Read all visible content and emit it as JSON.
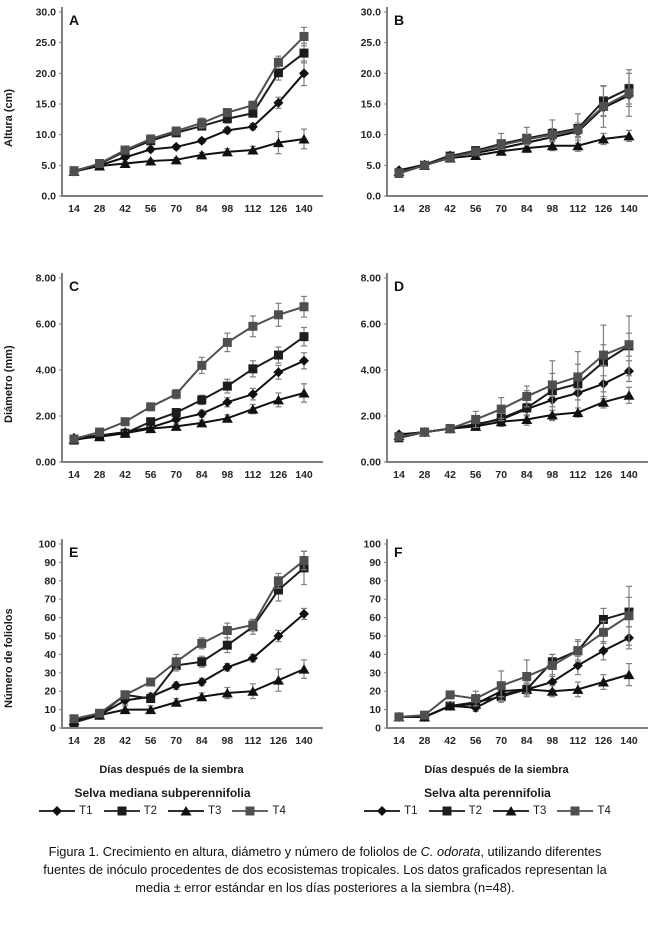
{
  "colors": {
    "axis": "#808080",
    "error_bar": "#7f7f7f",
    "text": "#1a1a1a",
    "t1": "#111111",
    "t2": "#1c1c1c",
    "t3": "#111111",
    "t4": "#4f4f4f"
  },
  "legends": [
    {
      "title": "Selva mediana subperennifolia",
      "entries": [
        {
          "label": "T1",
          "marker": "diamond",
          "color": "#111111"
        },
        {
          "label": "T2",
          "marker": "square",
          "color": "#1c1c1c"
        },
        {
          "label": "T3",
          "marker": "triangle",
          "color": "#111111"
        },
        {
          "label": "T4",
          "marker": "square",
          "color": "#4f4f4f"
        }
      ]
    },
    {
      "title": "Selva alta perennifolia",
      "entries": [
        {
          "label": "T1",
          "marker": "diamond",
          "color": "#111111"
        },
        {
          "label": "T2",
          "marker": "square",
          "color": "#1c1c1c"
        },
        {
          "label": "T3",
          "marker": "triangle",
          "color": "#111111"
        },
        {
          "label": "T4",
          "marker": "square",
          "color": "#4f4f4f"
        }
      ]
    }
  ],
  "caption": {
    "prefix": "Figura 1. Crecimiento en altura, diámetro y número de foliolos de ",
    "italic": "C. odorata",
    "suffix": ", utilizando diferentes fuentes de inóculo procedentes de dos ecosistemas tropicales. Los datos graficados representan la media ± error estándar en los días posteriores a la siembra (n=48)."
  },
  "chart_data": [
    {
      "panel_label": "A",
      "type": "line",
      "ylabel": "Altura (cm)",
      "ylim": [
        0,
        30
      ],
      "ytick_values": [
        30,
        25,
        20,
        15,
        10,
        5,
        0
      ],
      "ytick_labels": [
        "30.0",
        "25.0",
        "20.0",
        "15.0",
        "10.0",
        "5.0",
        "0.0"
      ],
      "x": [
        14,
        28,
        42,
        56,
        70,
        84,
        98,
        112,
        126,
        140
      ],
      "series": [
        {
          "name": "T1",
          "marker": "diamond",
          "color": "#111111",
          "values": [
            4.0,
            5.0,
            6.3,
            7.6,
            8.0,
            9.0,
            10.7,
            11.3,
            15.2,
            20.0
          ],
          "errors": [
            0.3,
            0.3,
            0.3,
            0.4,
            0.4,
            0.4,
            0.5,
            0.5,
            0.9,
            2.0
          ]
        },
        {
          "name": "T2",
          "marker": "square",
          "color": "#1c1c1c",
          "values": [
            4.1,
            5.2,
            7.3,
            9.0,
            10.3,
            11.4,
            12.6,
            13.5,
            20.1,
            23.3
          ],
          "errors": [
            0.3,
            0.3,
            0.4,
            0.4,
            0.5,
            0.6,
            0.7,
            0.6,
            1.2,
            1.6
          ]
        },
        {
          "name": "T3",
          "marker": "triangle",
          "color": "#111111",
          "values": [
            4.0,
            4.9,
            5.3,
            5.7,
            5.9,
            6.7,
            7.2,
            7.5,
            8.7,
            9.3
          ],
          "errors": [
            0.3,
            0.3,
            0.3,
            0.3,
            0.3,
            0.4,
            0.5,
            0.6,
            1.8,
            1.6
          ]
        },
        {
          "name": "T4",
          "marker": "square",
          "color": "#4f4f4f",
          "values": [
            4.0,
            5.3,
            7.5,
            9.3,
            10.6,
            11.9,
            13.6,
            14.8,
            21.8,
            26.0
          ],
          "errors": [
            0.4,
            0.3,
            0.4,
            0.4,
            0.5,
            0.8,
            0.6,
            0.6,
            1.0,
            1.5
          ]
        }
      ]
    },
    {
      "panel_label": "B",
      "type": "line",
      "ylabel": "",
      "ylim": [
        0,
        30
      ],
      "ytick_values": [
        30,
        25,
        20,
        15,
        10,
        5,
        0
      ],
      "ytick_labels": [
        "30.0",
        "25.0",
        "20.0",
        "15.0",
        "10.0",
        "5.0",
        "0.0"
      ],
      "x": [
        14,
        28,
        42,
        56,
        70,
        84,
        98,
        112,
        126,
        140
      ],
      "series": [
        {
          "name": "T1",
          "marker": "diamond",
          "color": "#111111",
          "values": [
            4.2,
            5.1,
            6.6,
            7.0,
            7.8,
            8.7,
            9.6,
            10.5,
            14.4,
            16.4
          ],
          "errors": [
            0.3,
            0.3,
            0.4,
            0.5,
            0.6,
            0.7,
            0.8,
            1.0,
            1.4,
            1.8
          ]
        },
        {
          "name": "T2",
          "marker": "square",
          "color": "#1c1c1c",
          "values": [
            3.7,
            5.0,
            6.5,
            7.4,
            8.5,
            9.4,
            10.2,
            11.0,
            15.5,
            17.5
          ],
          "errors": [
            0.3,
            0.3,
            0.4,
            0.6,
            1.7,
            1.8,
            2.2,
            2.4,
            2.4,
            2.5
          ]
        },
        {
          "name": "T3",
          "marker": "triangle",
          "color": "#111111",
          "values": [
            4.0,
            5.0,
            6.2,
            6.6,
            7.3,
            7.8,
            8.2,
            8.2,
            9.3,
            9.8
          ],
          "errors": [
            0.3,
            0.3,
            0.4,
            0.5,
            0.6,
            0.7,
            0.8,
            0.9,
            0.9,
            0.9
          ]
        },
        {
          "name": "T4",
          "marker": "square",
          "color": "#4f4f4f",
          "values": [
            3.8,
            5.0,
            6.3,
            7.2,
            8.3,
            9.2,
            10.0,
            10.8,
            14.6,
            16.8
          ],
          "errors": [
            0.3,
            0.3,
            0.4,
            0.5,
            0.7,
            0.9,
            1.0,
            1.1,
            3.4,
            3.8
          ]
        }
      ]
    },
    {
      "panel_label": "C",
      "type": "line",
      "ylabel": "Diámetro (mm)",
      "ylim": [
        0,
        8
      ],
      "ytick_values": [
        8,
        6,
        4,
        2,
        0
      ],
      "ytick_labels": [
        "8.00",
        "6.00",
        "4.00",
        "2.00",
        "0.00"
      ],
      "x": [
        14,
        28,
        42,
        56,
        70,
        84,
        98,
        112,
        126,
        140
      ],
      "series": [
        {
          "name": "T1",
          "marker": "diamond",
          "color": "#111111",
          "values": [
            1.05,
            1.15,
            1.3,
            1.5,
            1.85,
            2.1,
            2.6,
            2.95,
            3.9,
            4.4
          ],
          "errors": [
            0.05,
            0.05,
            0.08,
            0.1,
            0.1,
            0.15,
            0.2,
            0.25,
            0.3,
            0.35
          ]
        },
        {
          "name": "T2",
          "marker": "square",
          "color": "#1c1c1c",
          "values": [
            0.95,
            1.15,
            1.25,
            1.75,
            2.15,
            2.7,
            3.3,
            4.05,
            4.65,
            5.45
          ],
          "errors": [
            0.05,
            0.08,
            0.1,
            0.1,
            0.15,
            0.2,
            0.3,
            0.35,
            0.35,
            0.4
          ]
        },
        {
          "name": "T3",
          "marker": "triangle",
          "color": "#111111",
          "values": [
            1.0,
            1.1,
            1.25,
            1.45,
            1.55,
            1.7,
            1.9,
            2.3,
            2.7,
            3.0
          ],
          "errors": [
            0.05,
            0.05,
            0.08,
            0.1,
            0.1,
            0.12,
            0.15,
            0.2,
            0.3,
            0.4
          ]
        },
        {
          "name": "T4",
          "marker": "square",
          "color": "#4f4f4f",
          "values": [
            1.0,
            1.3,
            1.75,
            2.4,
            2.95,
            4.2,
            5.2,
            5.9,
            6.4,
            6.75
          ],
          "errors": [
            0.05,
            0.08,
            0.1,
            0.15,
            0.2,
            0.35,
            0.4,
            0.45,
            0.5,
            0.45
          ]
        }
      ]
    },
    {
      "panel_label": "D",
      "type": "line",
      "ylabel": "",
      "ylim": [
        0,
        8
      ],
      "ytick_values": [
        8,
        6,
        4,
        2,
        0
      ],
      "ytick_labels": [
        "8.00",
        "6.00",
        "4.00",
        "2.00",
        "0.00"
      ],
      "x": [
        14,
        28,
        42,
        56,
        70,
        84,
        98,
        112,
        126,
        140
      ],
      "series": [
        {
          "name": "T1",
          "marker": "diamond",
          "color": "#111111",
          "values": [
            1.2,
            1.3,
            1.45,
            1.65,
            1.85,
            2.3,
            2.7,
            3.0,
            3.4,
            3.95
          ],
          "errors": [
            0.08,
            0.08,
            0.1,
            0.15,
            0.2,
            0.25,
            0.3,
            0.3,
            0.35,
            0.45
          ]
        },
        {
          "name": "T2",
          "marker": "square",
          "color": "#1c1c1c",
          "values": [
            1.05,
            1.3,
            1.45,
            1.6,
            1.9,
            2.35,
            3.1,
            3.4,
            4.35,
            5.05
          ],
          "errors": [
            0.08,
            0.1,
            0.1,
            0.15,
            0.35,
            0.75,
            1.3,
            1.4,
            1.6,
            1.3
          ]
        },
        {
          "name": "T3",
          "marker": "triangle",
          "color": "#111111",
          "values": [
            1.15,
            1.3,
            1.45,
            1.55,
            1.75,
            1.85,
            2.05,
            2.15,
            2.6,
            2.9
          ],
          "errors": [
            0.08,
            0.08,
            0.1,
            0.12,
            0.15,
            0.15,
            0.2,
            0.2,
            0.25,
            0.35
          ]
        },
        {
          "name": "T4",
          "marker": "square",
          "color": "#4f4f4f",
          "values": [
            1.1,
            1.3,
            1.45,
            1.85,
            2.3,
            2.85,
            3.35,
            3.7,
            4.65,
            5.1
          ],
          "errors": [
            0.1,
            0.1,
            0.1,
            0.35,
            0.5,
            0.45,
            0.5,
            0.55,
            0.45,
            0.5
          ]
        }
      ]
    },
    {
      "panel_label": "E",
      "type": "line",
      "ylabel": "Número de foliolos",
      "xlabel": "Días después de la siembra",
      "ylim": [
        0,
        100
      ],
      "ytick_values": [
        100,
        90,
        80,
        70,
        60,
        50,
        40,
        30,
        20,
        10,
        0
      ],
      "ytick_labels": [
        "100",
        "90",
        "80",
        "70",
        "60",
        "50",
        "40",
        "30",
        "20",
        "10",
        "0"
      ],
      "x": [
        14,
        28,
        42,
        56,
        70,
        84,
        98,
        112,
        126,
        140
      ],
      "series": [
        {
          "name": "T1",
          "marker": "diamond",
          "color": "#111111",
          "values": [
            4,
            7,
            15,
            17,
            23,
            25,
            33,
            38,
            50,
            62
          ],
          "errors": [
            1,
            1,
            2,
            2,
            2,
            2,
            2,
            2,
            3,
            3
          ]
        },
        {
          "name": "T2",
          "marker": "square",
          "color": "#1c1c1c",
          "values": [
            3,
            7,
            18,
            16,
            34,
            36,
            45,
            55,
            75,
            87
          ],
          "errors": [
            1,
            1,
            2,
            2,
            3,
            3,
            4,
            4,
            6,
            9
          ]
        },
        {
          "name": "T3",
          "marker": "triangle",
          "color": "#111111",
          "values": [
            4,
            7,
            10,
            10,
            14,
            17,
            19,
            20,
            26,
            32
          ],
          "errors": [
            1,
            1,
            2,
            2,
            2,
            2,
            3,
            4,
            6,
            5
          ]
        },
        {
          "name": "T4",
          "marker": "square",
          "color": "#4f4f4f",
          "values": [
            5,
            8,
            18,
            25,
            36,
            46,
            53,
            56,
            80,
            91
          ],
          "errors": [
            1,
            1,
            2,
            2,
            4,
            3,
            4,
            3,
            4,
            5
          ]
        }
      ]
    },
    {
      "panel_label": "F",
      "type": "line",
      "ylabel": "",
      "xlabel": "Días después de la siembra",
      "ylim": [
        0,
        100
      ],
      "ytick_values": [
        100,
        90,
        80,
        70,
        60,
        50,
        40,
        30,
        20,
        10,
        0
      ],
      "ytick_labels": [
        "100",
        "90",
        "80",
        "70",
        "60",
        "50",
        "40",
        "30",
        "20",
        "10",
        "0"
      ],
      "x": [
        14,
        28,
        42,
        56,
        70,
        84,
        98,
        112,
        126,
        140
      ],
      "series": [
        {
          "name": "T1",
          "marker": "diamond",
          "color": "#111111",
          "values": [
            6,
            6,
            12,
            11,
            18,
            21,
            25,
            34,
            42,
            49
          ],
          "errors": [
            1,
            1,
            2,
            2,
            3,
            3,
            4,
            5,
            5,
            6
          ]
        },
        {
          "name": "T2",
          "marker": "square",
          "color": "#1c1c1c",
          "values": [
            6,
            6,
            12,
            14,
            17,
            21,
            36,
            42,
            59,
            63
          ],
          "errors": [
            1,
            1,
            2,
            2,
            3,
            4,
            4,
            5,
            6,
            8
          ]
        },
        {
          "name": "T3",
          "marker": "triangle",
          "color": "#111111",
          "values": [
            6,
            6,
            12,
            13,
            20,
            21,
            20,
            21,
            25,
            29
          ],
          "errors": [
            1,
            1,
            2,
            2,
            3,
            3,
            3,
            4,
            4,
            6
          ]
        },
        {
          "name": "T4",
          "marker": "square",
          "color": "#4f4f4f",
          "values": [
            6,
            7,
            18,
            16,
            23,
            28,
            34,
            42,
            52,
            61
          ],
          "errors": [
            1,
            1,
            2,
            4,
            8,
            9,
            6,
            6,
            6,
            16
          ]
        }
      ]
    }
  ]
}
